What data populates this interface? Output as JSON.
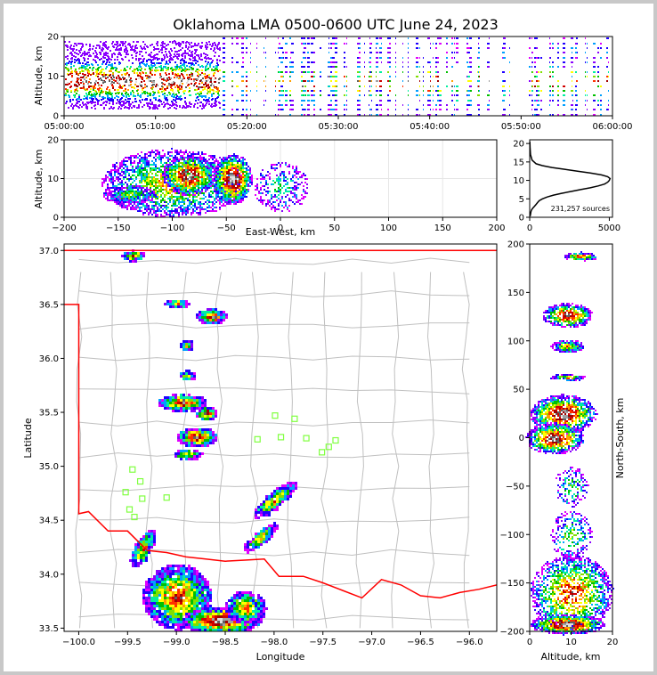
{
  "figure_title": "Oklahoma LMA 0500-0600 UTC June 24, 2023",
  "colors": {
    "density_scale": [
      "#ffffff",
      "#e000ff",
      "#8a00ff",
      "#2000ff",
      "#00a0ff",
      "#00f0a0",
      "#00c000",
      "#80e000",
      "#ffff00",
      "#ffa000",
      "#ff3000",
      "#d00000",
      "#a00000",
      "#606060",
      "#a0a0a0",
      "#e0e0e0"
    ],
    "state_border": "#ff0000",
    "county_lines": "#c0c0c0",
    "stations": "#80ff40",
    "profile_line": "#000000"
  },
  "chart_data": [
    {
      "type": "heatmap",
      "panel": "time-altitude",
      "xlabel": "",
      "ylabel": "Altitude, km",
      "xlim": [
        "05:00:00",
        "06:00:00"
      ],
      "ylim": [
        0,
        20
      ],
      "x_ticks": [
        "05:00:00",
        "05:10:00",
        "05:20:00",
        "05:30:00",
        "05:40:00",
        "05:50:00",
        "06:00:00"
      ],
      "y_ticks": [
        0,
        10,
        20
      ]
    },
    {
      "type": "heatmap",
      "panel": "east-west-altitude",
      "xlabel": "East-West, km",
      "ylabel": "Altitude, km",
      "xlim": [
        -200,
        200
      ],
      "ylim": [
        0,
        20
      ],
      "x_ticks": [
        -200,
        -150,
        -100,
        -50,
        0,
        50,
        100,
        150,
        200
      ],
      "y_ticks": [
        0,
        10,
        20
      ],
      "grid": true
    },
    {
      "type": "line",
      "panel": "altitude-histogram",
      "xlabel": "",
      "ylabel": "",
      "xlim": [
        0,
        5200
      ],
      "ylim": [
        0,
        21
      ],
      "x_ticks": [
        0,
        5000
      ],
      "y_ticks": [
        0,
        5,
        10,
        15,
        20
      ],
      "annotation": "231,257 sources",
      "series": [
        {
          "x": [
            30,
            50,
            80,
            120,
            200,
            300,
            400,
            500,
            600,
            800,
            1100,
            1500,
            2000,
            2600,
            3200,
            3800,
            4300,
            4700,
            4900,
            5000,
            5050,
            4900,
            4500,
            3800,
            3000,
            2200,
            1400,
            800,
            400,
            150,
            50,
            20,
            10
          ],
          "y": [
            0.3,
            0.8,
            1.5,
            2.0,
            2.5,
            3.0,
            3.5,
            4.0,
            4.5,
            5.0,
            5.5,
            6.0,
            6.5,
            7.0,
            7.5,
            8.0,
            8.5,
            9.0,
            9.5,
            10.0,
            10.5,
            11.0,
            11.5,
            12.0,
            12.5,
            13.0,
            13.5,
            14.0,
            14.5,
            15.5,
            17.0,
            19.0,
            20.5
          ]
        }
      ]
    },
    {
      "type": "heatmap",
      "panel": "plan-view",
      "xlabel": "Longitude",
      "ylabel": "Latitude",
      "xlim": [
        -100.15,
        -95.72
      ],
      "ylim": [
        33.47,
        37.06
      ],
      "x_ticks": [
        -100.0,
        -99.5,
        -99.0,
        -98.5,
        -98.0,
        -97.5,
        -97.0,
        -96.5,
        -96.0
      ],
      "y_ticks": [
        33.5,
        34.0,
        34.5,
        35.0,
        35.5,
        36.0,
        36.5,
        37.0
      ],
      "x_tick_labels": [
        "−100.0",
        "−99.5",
        "−99.0",
        "−98.5",
        "−98.0",
        "−97.5",
        "−97.0",
        "−96.5",
        "−96.0"
      ],
      "y_tick_labels": [
        "33.5",
        "34.0",
        "34.5",
        "35.0",
        "35.5",
        "36.0",
        "36.5",
        "37.0"
      ],
      "stations": [
        {
          "lon": -99.45,
          "lat": 34.97
        },
        {
          "lon": -99.37,
          "lat": 34.86
        },
        {
          "lon": -99.52,
          "lat": 34.76
        },
        {
          "lon": -99.35,
          "lat": 34.7
        },
        {
          "lon": -99.48,
          "lat": 34.6
        },
        {
          "lon": -99.43,
          "lat": 34.53
        },
        {
          "lon": -99.1,
          "lat": 34.71
        },
        {
          "lon": -97.99,
          "lat": 35.47
        },
        {
          "lon": -97.79,
          "lat": 35.44
        },
        {
          "lon": -98.17,
          "lat": 35.25
        },
        {
          "lon": -97.93,
          "lat": 35.27
        },
        {
          "lon": -97.67,
          "lat": 35.26
        },
        {
          "lon": -97.37,
          "lat": 35.24
        },
        {
          "lon": -97.44,
          "lat": 35.18
        },
        {
          "lon": -97.51,
          "lat": 35.13
        }
      ]
    },
    {
      "type": "heatmap",
      "panel": "altitude-north-south",
      "xlabel": "Altitude, km",
      "ylabel": "North-South, km",
      "xlim": [
        0,
        20
      ],
      "ylim": [
        -200,
        200
      ],
      "x_ticks": [
        0,
        10,
        20
      ],
      "y_ticks": [
        -200,
        -150,
        -100,
        -50,
        0,
        50,
        100,
        150,
        200
      ]
    }
  ]
}
